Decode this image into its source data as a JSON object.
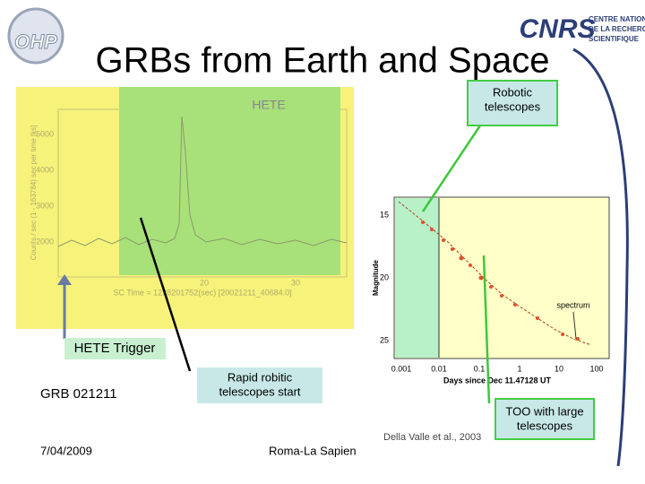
{
  "title": "GRBs from Earth and Space",
  "logos": {
    "ohp": "OHP",
    "cnrs": "CNRS",
    "cnrs_lines": [
      "CENTRE NATIONAL",
      "DE LA RECHERCHE",
      "SCIENTIFIQUE"
    ]
  },
  "hete_plot": {
    "label": "HETE",
    "yticks": [
      "5000",
      "4000",
      "3000",
      "2000"
    ],
    "xticks": [
      "20",
      "30"
    ],
    "xlabel": "SC Time = 1228201752(sec) [20021211_40684.0]",
    "ylabel": "Counts / sec (1 - 163784) sec per time [ks]"
  },
  "optical_plot": {
    "yticks": [
      "15",
      "20",
      "25"
    ],
    "xticks": [
      "0.001",
      "0.01",
      "0.1",
      "1",
      "10",
      "100"
    ],
    "xlabel": "Days since Dec 11.47128 UT",
    "ylabel": "Magnitude",
    "annotation": "spectrum"
  },
  "callouts": {
    "robotic": [
      "Robotic",
      "telescopes"
    ],
    "hete_trigger": "HETE Trigger",
    "grb": "GRB 021211",
    "rapid": [
      "Rapid robitic",
      "telescopes start"
    ],
    "too": [
      "TOO with large",
      "telescopes"
    ]
  },
  "citation": "Della Valle et al., 2003",
  "footer": {
    "date": "7/04/2009",
    "venue": "Roma-La Sapien"
  }
}
